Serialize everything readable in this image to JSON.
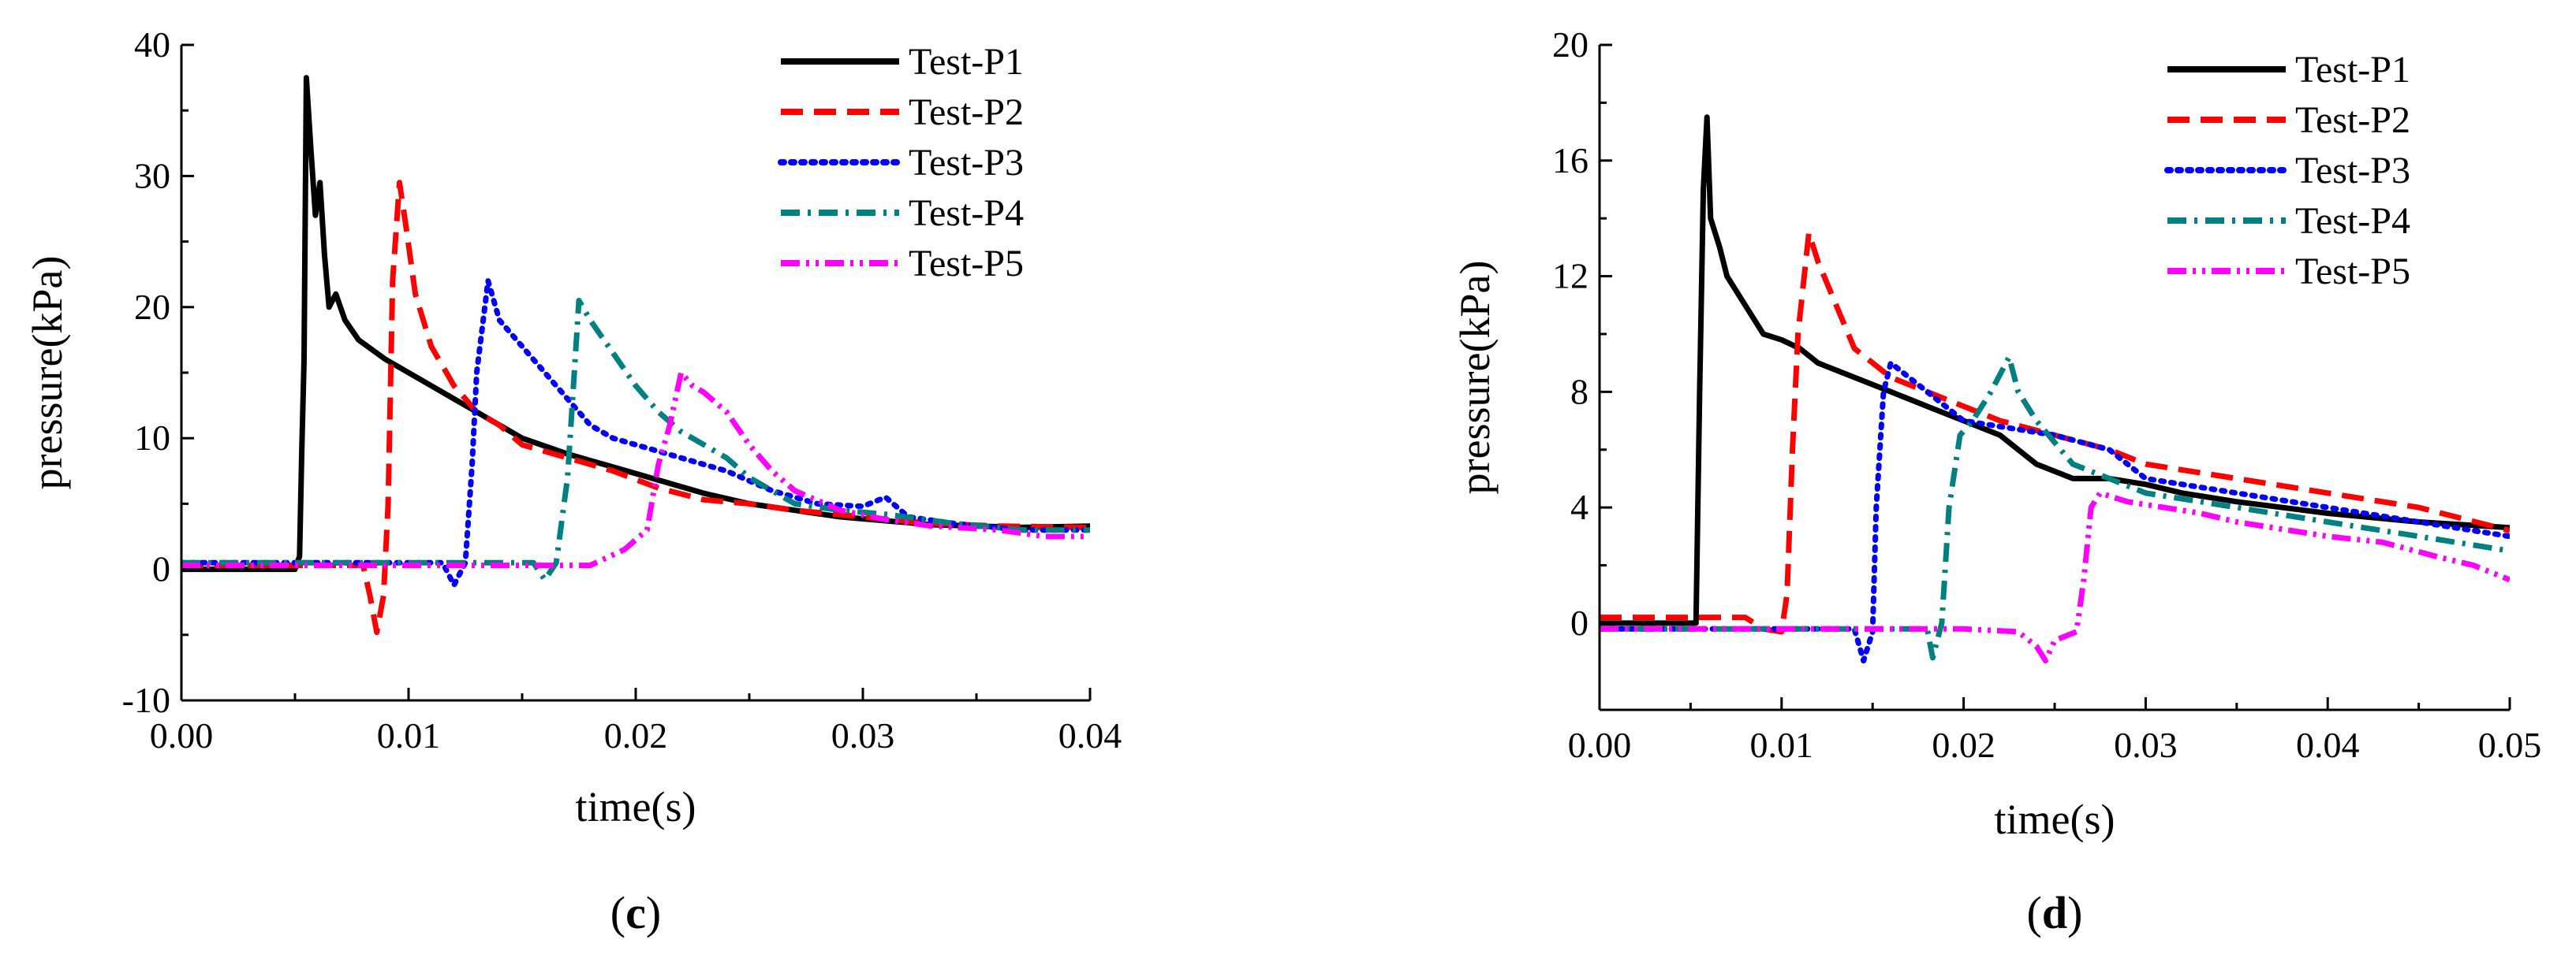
{
  "chart_data": [
    {
      "type": "line",
      "panel_label": "c",
      "xlabel": "time(s)",
      "ylabel": "pressure(kPa)",
      "xlim": [
        0.0,
        0.04
      ],
      "ylim": [
        -10,
        40
      ],
      "xticks": [
        0.0,
        0.01,
        0.02,
        0.03,
        0.04
      ],
      "xtick_labels": [
        "0.00",
        "0.01",
        "0.02",
        "0.03",
        "0.04"
      ],
      "yticks": [
        -10,
        0,
        10,
        20,
        30,
        40
      ],
      "ytick_labels": [
        "-10",
        "0",
        "10",
        "20",
        "30",
        "40"
      ],
      "legend_position": "top-right",
      "series": [
        {
          "name": "Test-P1",
          "color": "#000000",
          "dash": "solid",
          "points": [
            [
              0,
              0
            ],
            [
              0.005,
              0
            ],
            [
              0.0052,
              1
            ],
            [
              0.0053,
              9
            ],
            [
              0.0054,
              16
            ],
            [
              0.0055,
              37.5
            ],
            [
              0.0057,
              32
            ],
            [
              0.0059,
              27
            ],
            [
              0.0061,
              29.5
            ],
            [
              0.0063,
              24
            ],
            [
              0.0065,
              20
            ],
            [
              0.0068,
              21
            ],
            [
              0.0072,
              19
            ],
            [
              0.0078,
              17.5
            ],
            [
              0.009,
              16
            ],
            [
              0.01,
              15
            ],
            [
              0.011,
              14
            ],
            [
              0.012,
              13
            ],
            [
              0.013,
              12
            ],
            [
              0.015,
              10
            ],
            [
              0.017,
              8.8
            ],
            [
              0.019,
              7.8
            ],
            [
              0.021,
              6.8
            ],
            [
              0.023,
              5.8
            ],
            [
              0.025,
              5
            ],
            [
              0.027,
              4.5
            ],
            [
              0.029,
              4
            ],
            [
              0.031,
              3.7
            ],
            [
              0.033,
              3.4
            ],
            [
              0.035,
              3.3
            ],
            [
              0.037,
              3.2
            ],
            [
              0.04,
              3.3
            ]
          ]
        },
        {
          "name": "Test-P2",
          "color": "#ff0000",
          "dash": "dash",
          "points": [
            [
              0,
              0.3
            ],
            [
              0.008,
              0.3
            ],
            [
              0.0083,
              -2
            ],
            [
              0.0086,
              -4.8
            ],
            [
              0.0089,
              -2
            ],
            [
              0.0091,
              5
            ],
            [
              0.0093,
              22
            ],
            [
              0.0096,
              29.5
            ],
            [
              0.0099,
              26
            ],
            [
              0.0103,
              21
            ],
            [
              0.011,
              17
            ],
            [
              0.012,
              14
            ],
            [
              0.013,
              12
            ],
            [
              0.014,
              11
            ],
            [
              0.015,
              9.5
            ],
            [
              0.017,
              8.5
            ],
            [
              0.019,
              7.5
            ],
            [
              0.021,
              6.2
            ],
            [
              0.023,
              5.3
            ],
            [
              0.025,
              5
            ],
            [
              0.027,
              4.5
            ],
            [
              0.03,
              4
            ],
            [
              0.033,
              3.5
            ],
            [
              0.036,
              3.3
            ],
            [
              0.04,
              3.2
            ]
          ]
        },
        {
          "name": "Test-P3",
          "color": "#0000ff",
          "dash": "dot",
          "points": [
            [
              0,
              0.5
            ],
            [
              0.0115,
              0.5
            ],
            [
              0.012,
              -1.2
            ],
            [
              0.0125,
              0.5
            ],
            [
              0.0128,
              8
            ],
            [
              0.013,
              15
            ],
            [
              0.0135,
              22
            ],
            [
              0.014,
              19
            ],
            [
              0.015,
              17
            ],
            [
              0.016,
              15
            ],
            [
              0.017,
              13
            ],
            [
              0.018,
              11
            ],
            [
              0.019,
              10
            ],
            [
              0.02,
              9.5
            ],
            [
              0.021,
              9
            ],
            [
              0.022,
              8.5
            ],
            [
              0.024,
              7.5
            ],
            [
              0.026,
              6
            ],
            [
              0.028,
              5
            ],
            [
              0.03,
              4.8
            ],
            [
              0.031,
              5.5
            ],
            [
              0.032,
              4
            ],
            [
              0.034,
              3.5
            ],
            [
              0.037,
              3
            ],
            [
              0.04,
              3
            ]
          ]
        },
        {
          "name": "Test-P4",
          "color": "#008080",
          "dash": "dashdot",
          "points": [
            [
              0,
              0.5
            ],
            [
              0.0155,
              0.5
            ],
            [
              0.016,
              -0.8
            ],
            [
              0.0165,
              0.5
            ],
            [
              0.017,
              7
            ],
            [
              0.0175,
              20.5
            ],
            [
              0.018,
              19
            ],
            [
              0.019,
              16.5
            ],
            [
              0.02,
              14
            ],
            [
              0.021,
              12
            ],
            [
              0.022,
              10.5
            ],
            [
              0.023,
              9.5
            ],
            [
              0.024,
              8.5
            ],
            [
              0.025,
              7
            ],
            [
              0.026,
              6
            ],
            [
              0.027,
              5
            ],
            [
              0.029,
              4.5
            ],
            [
              0.031,
              4.2
            ],
            [
              0.034,
              3.5
            ],
            [
              0.037,
              3
            ],
            [
              0.04,
              3
            ]
          ]
        },
        {
          "name": "Test-P5",
          "color": "#ff00ff",
          "dash": "dashdotdot",
          "points": [
            [
              0,
              0.3
            ],
            [
              0.018,
              0.3
            ],
            [
              0.0195,
              1.5
            ],
            [
              0.0205,
              3
            ],
            [
              0.021,
              8
            ],
            [
              0.0215,
              11
            ],
            [
              0.022,
              15
            ],
            [
              0.0225,
              14
            ],
            [
              0.023,
              13.5
            ],
            [
              0.024,
              12
            ],
            [
              0.025,
              9.5
            ],
            [
              0.026,
              7.5
            ],
            [
              0.027,
              6
            ],
            [
              0.029,
              4.5
            ],
            [
              0.031,
              3.8
            ],
            [
              0.033,
              3.3
            ],
            [
              0.036,
              3
            ],
            [
              0.038,
              2.5
            ],
            [
              0.04,
              2.5
            ]
          ]
        }
      ]
    },
    {
      "type": "line",
      "panel_label": "d",
      "xlabel": "time(s)",
      "ylabel": "pressure(kPa)",
      "xlim": [
        0.0,
        0.05
      ],
      "ylim": [
        -3,
        20
      ],
      "xticks": [
        0.0,
        0.01,
        0.02,
        0.03,
        0.04,
        0.05
      ],
      "xtick_labels": [
        "0.00",
        "0.01",
        "0.02",
        "0.03",
        "0.04",
        "0.05"
      ],
      "yticks": [
        0,
        4,
        8,
        12,
        16,
        20
      ],
      "ytick_labels": [
        "0",
        "4",
        "8",
        "12",
        "16",
        "20"
      ],
      "legend_position": "top-right",
      "series": [
        {
          "name": "Test-P1",
          "color": "#000000",
          "dash": "solid",
          "points": [
            [
              0,
              0
            ],
            [
              0.005,
              0
            ],
            [
              0.0053,
              0
            ],
            [
              0.0055,
              8
            ],
            [
              0.0057,
              15
            ],
            [
              0.0059,
              17.5
            ],
            [
              0.0061,
              14
            ],
            [
              0.0063,
              13.6
            ],
            [
              0.0066,
              13
            ],
            [
              0.007,
              12
            ],
            [
              0.008,
              11
            ],
            [
              0.009,
              10
            ],
            [
              0.01,
              9.8
            ],
            [
              0.011,
              9.5
            ],
            [
              0.012,
              9
            ],
            [
              0.014,
              8.5
            ],
            [
              0.016,
              8
            ],
            [
              0.018,
              7.5
            ],
            [
              0.02,
              7
            ],
            [
              0.022,
              6.5
            ],
            [
              0.024,
              5.5
            ],
            [
              0.026,
              5
            ],
            [
              0.028,
              5
            ],
            [
              0.03,
              4.8
            ],
            [
              0.032,
              4.5
            ],
            [
              0.035,
              4.2
            ],
            [
              0.04,
              3.8
            ],
            [
              0.045,
              3.5
            ],
            [
              0.05,
              3.3
            ]
          ]
        },
        {
          "name": "Test-P2",
          "color": "#ff0000",
          "dash": "dash",
          "points": [
            [
              0,
              0.2
            ],
            [
              0.008,
              0.2
            ],
            [
              0.009,
              -0.2
            ],
            [
              0.01,
              -0.3
            ],
            [
              0.0103,
              1
            ],
            [
              0.0106,
              6
            ],
            [
              0.0109,
              10
            ],
            [
              0.0115,
              13.5
            ],
            [
              0.012,
              12.5
            ],
            [
              0.013,
              11
            ],
            [
              0.014,
              9.5
            ],
            [
              0.016,
              8.5
            ],
            [
              0.018,
              8
            ],
            [
              0.02,
              7.5
            ],
            [
              0.022,
              7
            ],
            [
              0.025,
              6.5
            ],
            [
              0.028,
              6
            ],
            [
              0.03,
              5.5
            ],
            [
              0.035,
              5
            ],
            [
              0.04,
              4.5
            ],
            [
              0.045,
              4
            ],
            [
              0.05,
              3.2
            ]
          ]
        },
        {
          "name": "Test-P3",
          "color": "#0000ff",
          "dash": "dot",
          "points": [
            [
              0,
              -0.2
            ],
            [
              0.014,
              -0.2
            ],
            [
              0.0145,
              -1.3
            ],
            [
              0.015,
              -0.3
            ],
            [
              0.0152,
              4
            ],
            [
              0.0156,
              8
            ],
            [
              0.016,
              9
            ],
            [
              0.018,
              8
            ],
            [
              0.02,
              7
            ],
            [
              0.022,
              6.8
            ],
            [
              0.025,
              6.5
            ],
            [
              0.028,
              6
            ],
            [
              0.03,
              5
            ],
            [
              0.035,
              4.5
            ],
            [
              0.04,
              4
            ],
            [
              0.045,
              3.5
            ],
            [
              0.05,
              3
            ]
          ]
        },
        {
          "name": "Test-P4",
          "color": "#008080",
          "dash": "dashdot",
          "points": [
            [
              0,
              -0.2
            ],
            [
              0.018,
              -0.2
            ],
            [
              0.0183,
              -1.2
            ],
            [
              0.0188,
              0
            ],
            [
              0.0192,
              4
            ],
            [
              0.0198,
              6.5
            ],
            [
              0.0205,
              7
            ],
            [
              0.0215,
              8
            ],
            [
              0.0225,
              9.2
            ],
            [
              0.023,
              8
            ],
            [
              0.024,
              7
            ],
            [
              0.026,
              5.5
            ],
            [
              0.028,
              5
            ],
            [
              0.03,
              4.5
            ],
            [
              0.035,
              4
            ],
            [
              0.04,
              3.5
            ],
            [
              0.045,
              3
            ],
            [
              0.05,
              2.5
            ]
          ]
        },
        {
          "name": "Test-P5",
          "color": "#ff00ff",
          "dash": "dashdotdot",
          "points": [
            [
              0,
              -0.2
            ],
            [
              0.02,
              -0.2
            ],
            [
              0.023,
              -0.3
            ],
            [
              0.024,
              -0.8
            ],
            [
              0.0245,
              -1.3
            ],
            [
              0.025,
              -0.6
            ],
            [
              0.0262,
              -0.3
            ],
            [
              0.0266,
              1.5
            ],
            [
              0.027,
              4
            ],
            [
              0.0275,
              4.5
            ],
            [
              0.029,
              4.2
            ],
            [
              0.031,
              4
            ],
            [
              0.033,
              3.8
            ],
            [
              0.035,
              3.5
            ],
            [
              0.038,
              3.2
            ],
            [
              0.04,
              3
            ],
            [
              0.043,
              2.8
            ],
            [
              0.046,
              2.3
            ],
            [
              0.048,
              2
            ],
            [
              0.05,
              1.5
            ]
          ]
        }
      ]
    }
  ]
}
